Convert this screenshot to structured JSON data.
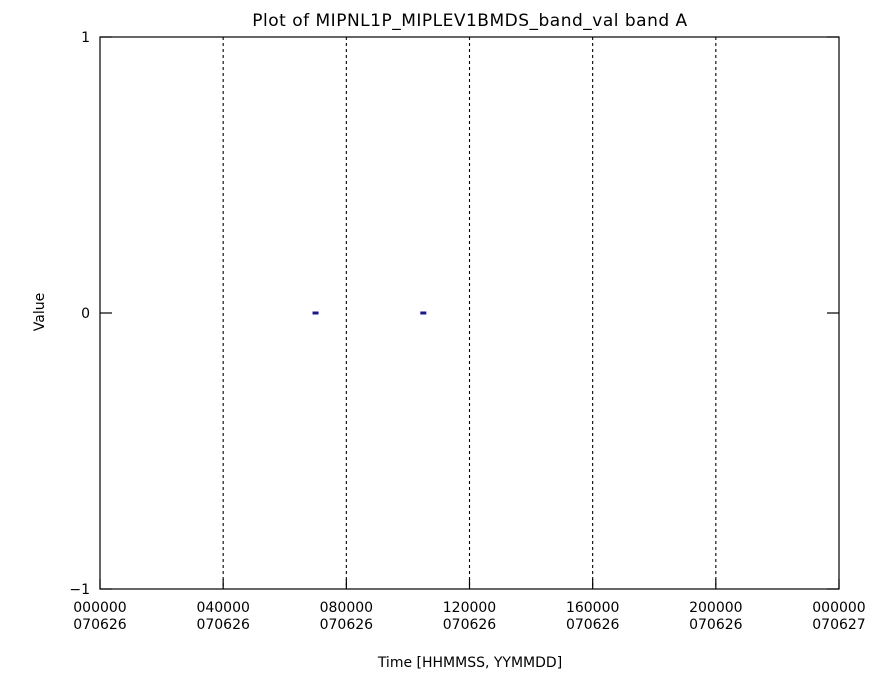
{
  "chart_data": {
    "type": "scatter",
    "title": "Plot of MIPNL1P_MIPLEV1BMDS_band_val band A",
    "xlabel": "Time [HHMMSS, YYMMDD]",
    "ylabel": "Value",
    "ylim": [
      -1,
      1
    ],
    "y_ticks": [
      {
        "value": 1,
        "label": "1"
      },
      {
        "value": 0,
        "label": "0"
      },
      {
        "value": -1,
        "label": "−1"
      }
    ],
    "xlim_hours": [
      0,
      24
    ],
    "x_ticks": [
      {
        "hours": 0,
        "time": "000000",
        "date": "070626"
      },
      {
        "hours": 4,
        "time": "040000",
        "date": "070626"
      },
      {
        "hours": 8,
        "time": "080000",
        "date": "070626"
      },
      {
        "hours": 12,
        "time": "120000",
        "date": "070626"
      },
      {
        "hours": 16,
        "time": "160000",
        "date": "070626"
      },
      {
        "hours": 20,
        "time": "200000",
        "date": "070626"
      },
      {
        "hours": 24,
        "time": "000000",
        "date": "070627"
      }
    ],
    "vertical_grid_hours": [
      4,
      8,
      12,
      16,
      20
    ],
    "grid": "vertical dotted",
    "series": [
      {
        "color": "#1a1a8c",
        "points": [
          {
            "hours": 7.0,
            "value": 0
          },
          {
            "hours": 10.5,
            "value": 0
          }
        ]
      }
    ]
  }
}
